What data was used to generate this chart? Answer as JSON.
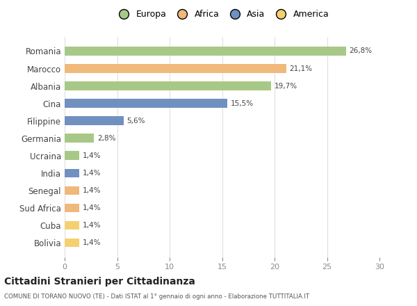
{
  "categories": [
    "Romania",
    "Marocco",
    "Albania",
    "Cina",
    "Filippine",
    "Germania",
    "Ucraina",
    "India",
    "Senegal",
    "Sud Africa",
    "Cuba",
    "Bolivia"
  ],
  "values": [
    26.8,
    21.1,
    19.7,
    15.5,
    5.6,
    2.8,
    1.4,
    1.4,
    1.4,
    1.4,
    1.4,
    1.4
  ],
  "labels": [
    "26,8%",
    "21,1%",
    "19,7%",
    "15,5%",
    "5,6%",
    "2,8%",
    "1,4%",
    "1,4%",
    "1,4%",
    "1,4%",
    "1,4%",
    "1,4%"
  ],
  "colors": [
    "#a8c888",
    "#f0b87a",
    "#a8c888",
    "#7090c0",
    "#7090c0",
    "#a8c888",
    "#a8c888",
    "#7090c0",
    "#f0b87a",
    "#f0b87a",
    "#f5d070",
    "#f5d070"
  ],
  "legend_labels": [
    "Europa",
    "Africa",
    "Asia",
    "America"
  ],
  "legend_colors": [
    "#a8c888",
    "#f0b87a",
    "#7090c0",
    "#f5d070"
  ],
  "title": "Cittadini Stranieri per Cittadinanza",
  "subtitle": "COMUNE DI TORANO NUOVO (TE) - Dati ISTAT al 1° gennaio di ogni anno - Elaborazione TUTTITALIA.IT",
  "xlim": [
    0,
    30
  ],
  "xticks": [
    0,
    5,
    10,
    15,
    20,
    25,
    30
  ],
  "background_color": "#ffffff",
  "grid_color": "#e0e0e0"
}
